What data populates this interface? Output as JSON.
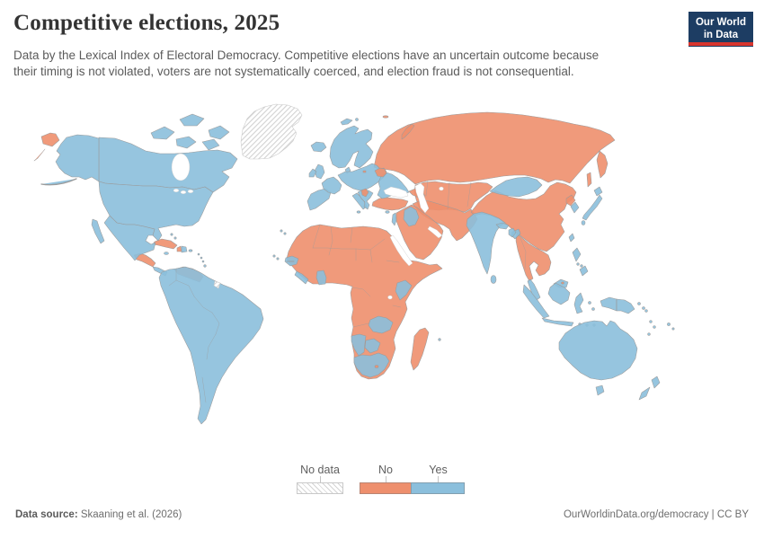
{
  "header": {
    "title": "Competitive elections, 2025",
    "subtitle_line1": "Data by the Lexical Index of Electoral Democracy. Competitive elections have an uncertain outcome because",
    "subtitle_line2": "their timing is not violated, voters are not systematically coerced, and election fraud is not consequential."
  },
  "logo": {
    "line1": "Our World",
    "line2": "in Data",
    "bg": "#1D3D63",
    "accent": "#D8352E"
  },
  "legend": {
    "no_data_label": "No data",
    "no_label": "No",
    "yes_label": "Yes"
  },
  "colors": {
    "yes": "#8BBFDC",
    "no": "#EE8F6D",
    "border": "#9b9b9b",
    "no_data_stroke": "#c9c9c9"
  },
  "footer": {
    "source_label": "Data source:",
    "source_text": " Skaaning et al. (2026)",
    "rights": "OurWorldinData.org/democracy | CC BY"
  },
  "chart_data": {
    "type": "choropleth-map",
    "title": "Competitive elections, 2025",
    "legend_categories": [
      "No data",
      "No",
      "Yes"
    ],
    "regions": [
      {
        "id": "greenland",
        "category": "no-data"
      },
      {
        "id": "french-guiana",
        "category": "no-data"
      },
      {
        "id": "russia",
        "category": "no"
      },
      {
        "id": "central-asia",
        "category": "no"
      },
      {
        "id": "caucasus",
        "category": "no"
      },
      {
        "id": "turkey",
        "category": "no"
      },
      {
        "id": "iran-afghanistan-pakistan",
        "category": "no"
      },
      {
        "id": "arabia-levant",
        "category": "no"
      },
      {
        "id": "africa-mainland",
        "category": "no"
      },
      {
        "id": "china",
        "category": "no"
      },
      {
        "id": "mainland-southeast-asia",
        "category": "no"
      },
      {
        "id": "north-korea",
        "category": "no"
      },
      {
        "id": "serbia",
        "category": "no"
      },
      {
        "id": "belarus",
        "category": "no"
      },
      {
        "id": "kaliningrad",
        "category": "no"
      },
      {
        "id": "central-america",
        "category": "no"
      },
      {
        "id": "cuba",
        "category": "no"
      },
      {
        "id": "haiti",
        "category": "no"
      },
      {
        "id": "venezuela",
        "category": "no"
      },
      {
        "id": "madagascar",
        "category": "no"
      },
      {
        "id": "lesotho",
        "category": "no"
      },
      {
        "id": "brunei",
        "category": "no"
      },
      {
        "id": "canada",
        "category": "yes"
      },
      {
        "id": "usa",
        "category": "yes"
      },
      {
        "id": "mexico",
        "category": "yes"
      },
      {
        "id": "costa-rica-panama",
        "category": "yes"
      },
      {
        "id": "jamaica",
        "category": "yes"
      },
      {
        "id": "dominican-republic",
        "category": "yes"
      },
      {
        "id": "puerto-rico",
        "category": "yes"
      },
      {
        "id": "bahamas",
        "category": "yes"
      },
      {
        "id": "lesser-antilles",
        "category": "yes"
      },
      {
        "id": "south-america",
        "category": "yes"
      },
      {
        "id": "iceland",
        "category": "yes"
      },
      {
        "id": "svalbard",
        "category": "yes"
      },
      {
        "id": "united-kingdom",
        "category": "yes"
      },
      {
        "id": "ireland",
        "category": "yes"
      },
      {
        "id": "scandinavia",
        "category": "yes"
      },
      {
        "id": "denmark",
        "category": "yes"
      },
      {
        "id": "iberia",
        "category": "yes"
      },
      {
        "id": "france",
        "category": "yes"
      },
      {
        "id": "central-europe",
        "category": "yes"
      },
      {
        "id": "italy",
        "category": "yes"
      },
      {
        "id": "balkans-greece",
        "category": "yes"
      },
      {
        "id": "ukraine-romania",
        "category": "yes"
      },
      {
        "id": "iraq",
        "category": "yes"
      },
      {
        "id": "israel-lebanon",
        "category": "yes"
      },
      {
        "id": "cyprus",
        "category": "yes"
      },
      {
        "id": "senegal",
        "category": "yes"
      },
      {
        "id": "sierra-leone-liberia",
        "category": "yes"
      },
      {
        "id": "ghana",
        "category": "yes"
      },
      {
        "id": "kenya",
        "category": "yes"
      },
      {
        "id": "zambia",
        "category": "yes"
      },
      {
        "id": "namibia",
        "category": "yes"
      },
      {
        "id": "botswana",
        "category": "yes"
      },
      {
        "id": "south-africa",
        "category": "yes"
      },
      {
        "id": "india",
        "category": "yes"
      },
      {
        "id": "nepal",
        "category": "yes"
      },
      {
        "id": "bangladesh",
        "category": "yes"
      },
      {
        "id": "sri-lanka",
        "category": "yes"
      },
      {
        "id": "mongolia",
        "category": "yes"
      },
      {
        "id": "south-korea",
        "category": "yes"
      },
      {
        "id": "japan",
        "category": "yes"
      },
      {
        "id": "taiwan",
        "category": "yes"
      },
      {
        "id": "malaysia",
        "category": "yes"
      },
      {
        "id": "indonesia",
        "category": "yes"
      },
      {
        "id": "philippines",
        "category": "yes"
      },
      {
        "id": "papua-new-guinea",
        "category": "yes"
      },
      {
        "id": "pacific-islands",
        "category": "yes"
      },
      {
        "id": "australia",
        "category": "yes"
      },
      {
        "id": "new-zealand",
        "category": "yes"
      },
      {
        "id": "cape-verde",
        "category": "yes"
      },
      {
        "id": "canary-islands",
        "category": "yes"
      },
      {
        "id": "mauritius",
        "category": "yes"
      }
    ]
  }
}
